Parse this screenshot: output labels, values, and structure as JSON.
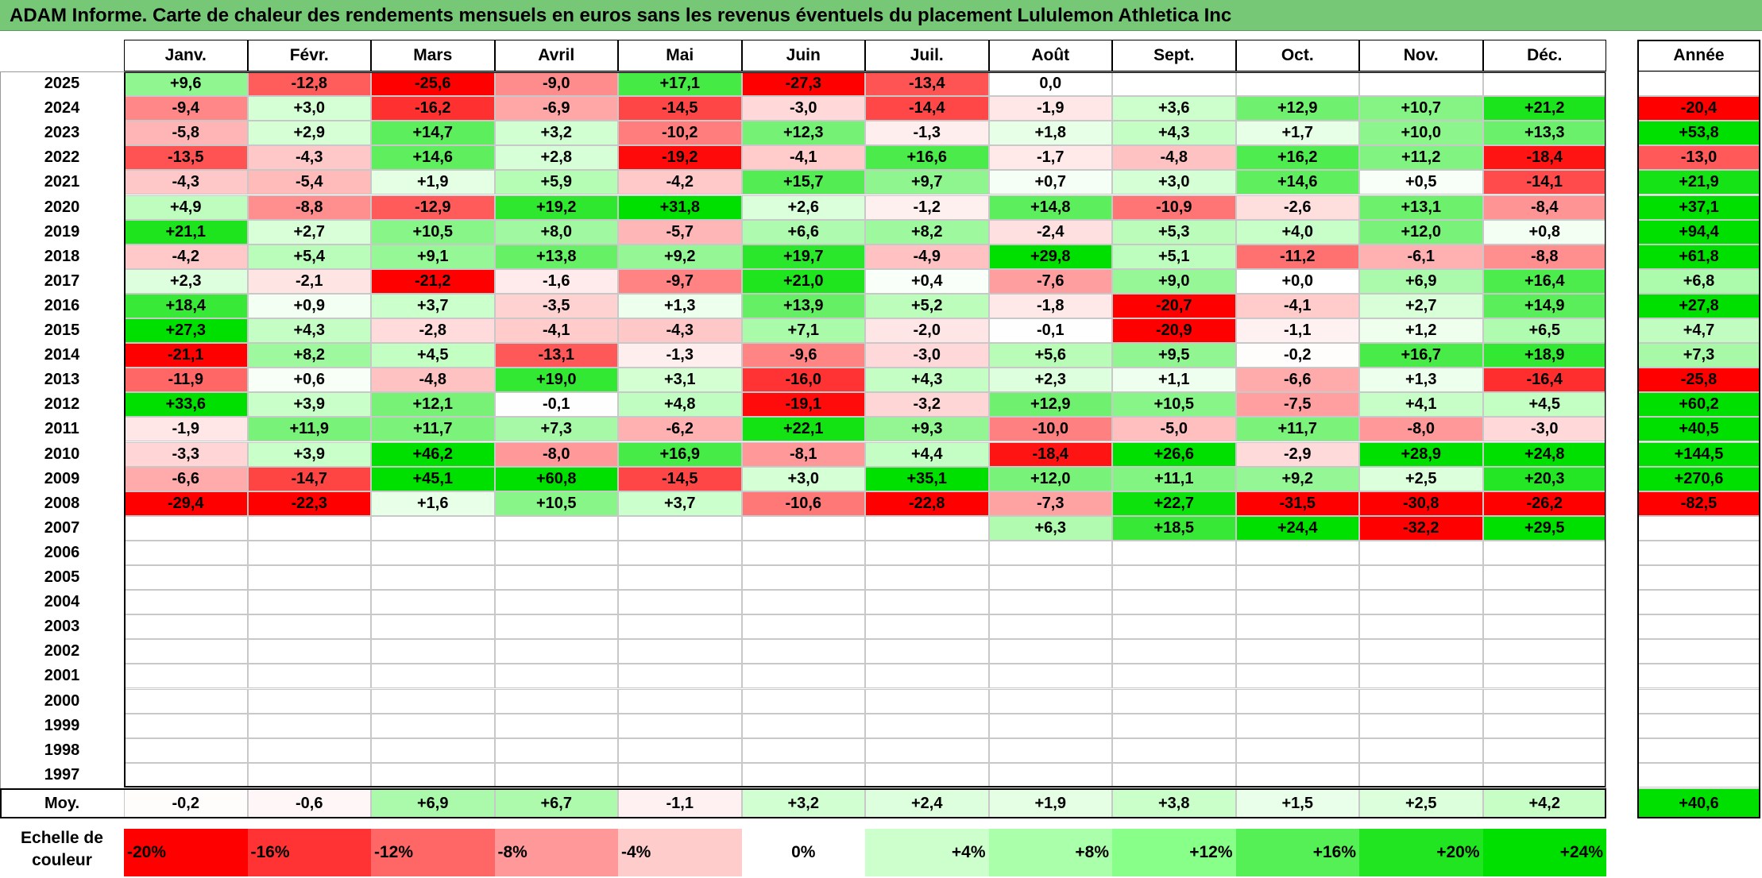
{
  "title": "ADAM Informe. Carte de chaleur des rendements mensuels en euros sans les revenus éventuels du placement Lululemon Athletica Inc",
  "chart_data": {
    "type": "heatmap",
    "months": [
      "Janv.",
      "Févr.",
      "Mars",
      "Avril",
      "Mai",
      "Juin",
      "Juil.",
      "Août",
      "Sept.",
      "Oct.",
      "Nov.",
      "Déc."
    ],
    "year_header": "Année",
    "avg_label": "Moy.",
    "rows": [
      {
        "year": "2025",
        "months": [
          "+9,6",
          "-12,8",
          "-25,6",
          "-9,0",
          "+17,1",
          "-27,3",
          "-13,4",
          "0,0",
          "",
          "",
          "",
          ""
        ],
        "annual": ""
      },
      {
        "year": "2024",
        "months": [
          "-9,4",
          "+3,0",
          "-16,2",
          "-6,9",
          "-14,5",
          "-3,0",
          "-14,4",
          "-1,9",
          "+3,6",
          "+12,9",
          "+10,7",
          "+21,2"
        ],
        "annual": "-20,4"
      },
      {
        "year": "2023",
        "months": [
          "-5,8",
          "+2,9",
          "+14,7",
          "+3,2",
          "-10,2",
          "+12,3",
          "-1,3",
          "+1,8",
          "+4,3",
          "+1,7",
          "+10,0",
          "+13,3"
        ],
        "annual": "+53,8"
      },
      {
        "year": "2022",
        "months": [
          "-13,5",
          "-4,3",
          "+14,6",
          "+2,8",
          "-19,2",
          "-4,1",
          "+16,6",
          "-1,7",
          "-4,8",
          "+16,2",
          "+11,2",
          "-18,4"
        ],
        "annual": "-13,0"
      },
      {
        "year": "2021",
        "months": [
          "-4,3",
          "-5,4",
          "+1,9",
          "+5,9",
          "-4,2",
          "+15,7",
          "+9,7",
          "+0,7",
          "+3,0",
          "+14,6",
          "+0,5",
          "-14,1"
        ],
        "annual": "+21,9"
      },
      {
        "year": "2020",
        "months": [
          "+4,9",
          "-8,8",
          "-12,9",
          "+19,2",
          "+31,8",
          "+2,6",
          "-1,2",
          "+14,8",
          "-10,9",
          "-2,6",
          "+13,1",
          "-8,4"
        ],
        "annual": "+37,1"
      },
      {
        "year": "2019",
        "months": [
          "+21,1",
          "+2,7",
          "+10,5",
          "+8,0",
          "-5,7",
          "+6,6",
          "+8,2",
          "-2,4",
          "+5,3",
          "+4,0",
          "+12,0",
          "+0,8"
        ],
        "annual": "+94,4"
      },
      {
        "year": "2018",
        "months": [
          "-4,2",
          "+5,4",
          "+9,1",
          "+13,8",
          "+9,2",
          "+19,7",
          "-4,9",
          "+29,8",
          "+5,1",
          "-11,2",
          "-6,1",
          "-8,8"
        ],
        "annual": "+61,8"
      },
      {
        "year": "2017",
        "months": [
          "+2,3",
          "-2,1",
          "-21,2",
          "-1,6",
          "-9,7",
          "+21,0",
          "+0,4",
          "-7,6",
          "+9,0",
          "+0,0",
          "+6,9",
          "+16,4"
        ],
        "annual": "+6,8"
      },
      {
        "year": "2016",
        "months": [
          "+18,4",
          "+0,9",
          "+3,7",
          "-3,5",
          "+1,3",
          "+13,9",
          "+5,2",
          "-1,8",
          "-20,7",
          "-4,1",
          "+2,7",
          "+14,9"
        ],
        "annual": "+27,8"
      },
      {
        "year": "2015",
        "months": [
          "+27,3",
          "+4,3",
          "-2,8",
          "-4,1",
          "-4,3",
          "+7,1",
          "-2,0",
          "-0,1",
          "-20,9",
          "-1,1",
          "+1,2",
          "+6,5"
        ],
        "annual": "+4,7"
      },
      {
        "year": "2014",
        "months": [
          "-21,1",
          "+8,2",
          "+4,5",
          "-13,1",
          "-1,3",
          "-9,6",
          "-3,0",
          "+5,6",
          "+9,5",
          "-0,2",
          "+16,7",
          "+18,9"
        ],
        "annual": "+7,3"
      },
      {
        "year": "2013",
        "months": [
          "-11,9",
          "+0,6",
          "-4,8",
          "+19,0",
          "+3,1",
          "-16,0",
          "+4,3",
          "+2,3",
          "+1,1",
          "-6,6",
          "+1,3",
          "-16,4"
        ],
        "annual": "-25,8"
      },
      {
        "year": "2012",
        "months": [
          "+33,6",
          "+3,9",
          "+12,1",
          "-0,1",
          "+4,8",
          "-19,1",
          "-3,2",
          "+12,9",
          "+10,5",
          "-7,5",
          "+4,1",
          "+4,5"
        ],
        "annual": "+60,2"
      },
      {
        "year": "2011",
        "months": [
          "-1,9",
          "+11,9",
          "+11,7",
          "+7,3",
          "-6,2",
          "+22,1",
          "+9,3",
          "-10,0",
          "-5,0",
          "+11,7",
          "-8,0",
          "-3,0"
        ],
        "annual": "+40,5"
      },
      {
        "year": "2010",
        "months": [
          "-3,3",
          "+3,9",
          "+46,2",
          "-8,0",
          "+16,9",
          "-8,1",
          "+4,4",
          "-18,4",
          "+26,6",
          "-2,9",
          "+28,9",
          "+24,8"
        ],
        "annual": "+144,5"
      },
      {
        "year": "2009",
        "months": [
          "-6,6",
          "-14,7",
          "+45,1",
          "+60,8",
          "-14,5",
          "+3,0",
          "+35,1",
          "+12,0",
          "+11,1",
          "+9,2",
          "+2,5",
          "+20,3"
        ],
        "annual": "+270,6"
      },
      {
        "year": "2008",
        "months": [
          "-29,4",
          "-22,3",
          "+1,6",
          "+10,5",
          "+3,7",
          "-10,6",
          "-22,8",
          "-7,3",
          "+22,7",
          "-31,5",
          "-30,8",
          "-26,2"
        ],
        "annual": "-82,5"
      },
      {
        "year": "2007",
        "months": [
          "",
          "",
          "",
          "",
          "",
          "",
          "",
          "+6,3",
          "+18,5",
          "+24,4",
          "-32,2",
          "+29,5"
        ],
        "annual": ""
      },
      {
        "year": "2006",
        "months": [
          "",
          "",
          "",
          "",
          "",
          "",
          "",
          "",
          "",
          "",
          "",
          ""
        ],
        "annual": ""
      },
      {
        "year": "2005",
        "months": [
          "",
          "",
          "",
          "",
          "",
          "",
          "",
          "",
          "",
          "",
          "",
          ""
        ],
        "annual": ""
      },
      {
        "year": "2004",
        "months": [
          "",
          "",
          "",
          "",
          "",
          "",
          "",
          "",
          "",
          "",
          "",
          ""
        ],
        "annual": ""
      },
      {
        "year": "2003",
        "months": [
          "",
          "",
          "",
          "",
          "",
          "",
          "",
          "",
          "",
          "",
          "",
          ""
        ],
        "annual": ""
      },
      {
        "year": "2002",
        "months": [
          "",
          "",
          "",
          "",
          "",
          "",
          "",
          "",
          "",
          "",
          "",
          ""
        ],
        "annual": ""
      },
      {
        "year": "2001",
        "months": [
          "",
          "",
          "",
          "",
          "",
          "",
          "",
          "",
          "",
          "",
          "",
          ""
        ],
        "annual": ""
      },
      {
        "year": "2000",
        "months": [
          "",
          "",
          "",
          "",
          "",
          "",
          "",
          "",
          "",
          "",
          "",
          ""
        ],
        "annual": ""
      },
      {
        "year": "1999",
        "months": [
          "",
          "",
          "",
          "",
          "",
          "",
          "",
          "",
          "",
          "",
          "",
          ""
        ],
        "annual": ""
      },
      {
        "year": "1998",
        "months": [
          "",
          "",
          "",
          "",
          "",
          "",
          "",
          "",
          "",
          "",
          "",
          ""
        ],
        "annual": ""
      },
      {
        "year": "1997",
        "months": [
          "",
          "",
          "",
          "",
          "",
          "",
          "",
          "",
          "",
          "",
          "",
          ""
        ],
        "annual": ""
      }
    ],
    "average": {
      "months": [
        "-0,2",
        "-0,6",
        "+6,9",
        "+6,7",
        "-1,1",
        "+3,2",
        "+2,4",
        "+1,9",
        "+3,8",
        "+1,5",
        "+2,5",
        "+4,2"
      ],
      "annual": "+40,6"
    },
    "color_scale": {
      "label": "Echelle de couleur",
      "stops": [
        "-20%",
        "-16%",
        "-12%",
        "-8%",
        "-4%",
        "0%",
        "+4%",
        "+8%",
        "+12%",
        "+16%",
        "+20%",
        "+24%"
      ],
      "colors": [
        "#ff0000",
        "#ff3333",
        "#ff6666",
        "#ff9999",
        "#ffcccc",
        "#ffffff",
        "#ccffcc",
        "#aaffaa",
        "#88ff88",
        "#55f055",
        "#22e522",
        "#00e000"
      ]
    }
  }
}
